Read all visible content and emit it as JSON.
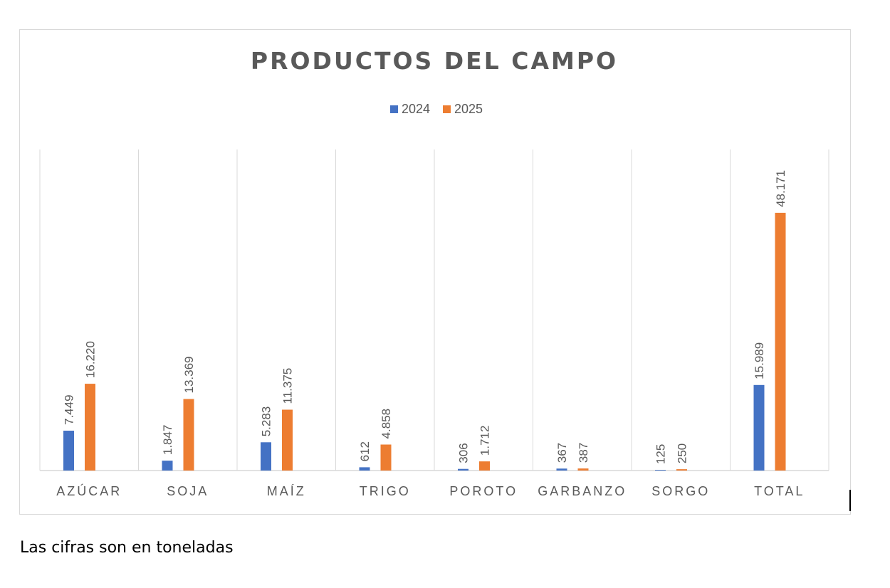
{
  "chart_data": {
    "type": "bar",
    "title": "PRODUCTOS DEL CAMPO",
    "categories": [
      "AZÚCAR",
      "SOJA",
      "MAÍZ",
      "TRIGO",
      "POROTO",
      "GARBANZO",
      "SORGO",
      "TOTAL"
    ],
    "series": [
      {
        "name": "2024",
        "color": "#4472c4",
        "values": [
          7449,
          1847,
          5283,
          612,
          306,
          367,
          125,
          15989
        ],
        "labels": [
          "7.449",
          "1.847",
          "5.283",
          "612",
          "306",
          "367",
          "125",
          "15.989"
        ]
      },
      {
        "name": "2025",
        "color": "#ed7d31",
        "values": [
          16220,
          13369,
          11375,
          4858,
          1712,
          387,
          250,
          48171
        ],
        "labels": [
          "16.220",
          "13.369",
          "11.375",
          "4.858",
          "1.712",
          "387",
          "250",
          "48.171"
        ]
      }
    ],
    "xlabel": "",
    "ylabel": "",
    "ylim": [
      0,
      60000
    ],
    "grid": "vertical category separators",
    "legend": "top",
    "data_labels": "rotated vertical above bars"
  },
  "note": "Las cifras son en toneladas"
}
